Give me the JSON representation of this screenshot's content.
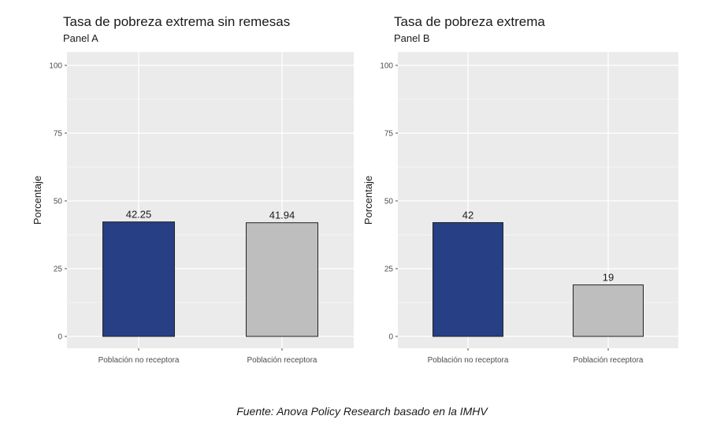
{
  "chart_data": [
    {
      "type": "bar",
      "title": "Tasa de pobreza extrema sin remesas",
      "subtitle": "Panel A",
      "ylabel": "Porcentaje",
      "xlabel": "",
      "categories": [
        "Población no receptora",
        "Población receptora"
      ],
      "values": [
        42.25,
        41.94
      ],
      "data_labels": [
        "42.25",
        "41.94"
      ],
      "colors": [
        "#263F85",
        "#BEBEBE"
      ],
      "ylim": [
        0,
        100
      ],
      "yticks": [
        0,
        25,
        50,
        75,
        100
      ],
      "grid": true,
      "legend": "none"
    },
    {
      "type": "bar",
      "title": "Tasa de pobreza extrema",
      "subtitle": "Panel B",
      "ylabel": "Porcentaje",
      "xlabel": "",
      "categories": [
        "Población no receptora",
        "Población receptora"
      ],
      "values": [
        42,
        19
      ],
      "data_labels": [
        "42",
        "19"
      ],
      "colors": [
        "#263F85",
        "#BEBEBE"
      ],
      "ylim": [
        0,
        100
      ],
      "yticks": [
        0,
        25,
        50,
        75,
        100
      ],
      "grid": true,
      "legend": "none"
    }
  ],
  "caption": "Fuente: Anova Policy Research basado en la IMHV"
}
